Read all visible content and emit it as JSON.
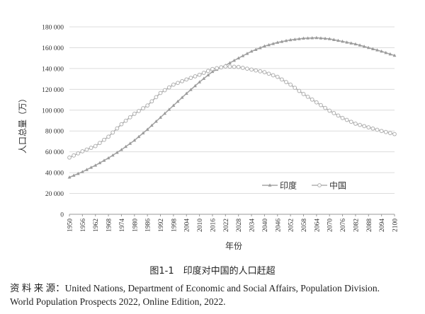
{
  "chart_data": {
    "type": "line",
    "title": "",
    "xlabel": "年份",
    "ylabel": "人口总量（万）",
    "xlim": [
      1950,
      2100
    ],
    "ylim": [
      0,
      180000
    ],
    "y_ticks": [
      "0",
      "20 000",
      "40 000",
      "60 000",
      "80 000",
      "100 000",
      "120 000",
      "140 000",
      "160 000",
      "180 000"
    ],
    "y_tick_values": [
      0,
      20000,
      40000,
      60000,
      80000,
      100000,
      120000,
      140000,
      160000,
      180000
    ],
    "x_ticks": [
      "1950",
      "1956",
      "1962",
      "1968",
      "1974",
      "1980",
      "1986",
      "1992",
      "1998",
      "2004",
      "2010",
      "2016",
      "2022",
      "2028",
      "2034",
      "2040",
      "2046",
      "2052",
      "2058",
      "2064",
      "2070",
      "2076",
      "2082",
      "2088",
      "2094",
      "2100"
    ],
    "x": [
      1950,
      1956,
      1962,
      1968,
      1974,
      1980,
      1986,
      1992,
      1998,
      2004,
      2010,
      2016,
      2022,
      2028,
      2034,
      2040,
      2046,
      2052,
      2058,
      2064,
      2070,
      2076,
      2082,
      2088,
      2094,
      2100
    ],
    "series": [
      {
        "name": "印度",
        "marker": "triangle",
        "color": "#a6a6a6",
        "values": [
          35500,
          40800,
          47000,
          54000,
          62000,
          71000,
          81500,
          93000,
          104500,
          116000,
          127000,
          137000,
          143000,
          150000,
          156500,
          161500,
          165000,
          167500,
          169000,
          169500,
          168500,
          166000,
          163500,
          160000,
          156500,
          152500
        ]
      },
      {
        "name": "中国",
        "marker": "circle",
        "color": "#b0b0b0",
        "values": [
          54500,
          60500,
          65500,
          74500,
          86500,
          96500,
          104500,
          116500,
          124500,
          129500,
          134000,
          139500,
          142000,
          141500,
          139000,
          136500,
          132000,
          124500,
          115500,
          107500,
          99500,
          92500,
          87000,
          83500,
          80000,
          77000
        ]
      }
    ],
    "grid": "horizontal",
    "legend_position": "bottom-right-inside"
  },
  "caption": "图1-1　印度对中国的人口赶超",
  "source": {
    "line1": "资 料 来 源：United Nations, Department of Economic and Social Affairs, Population Division.",
    "line2": "World Population Prospects 2022, Online Edition, 2022."
  }
}
